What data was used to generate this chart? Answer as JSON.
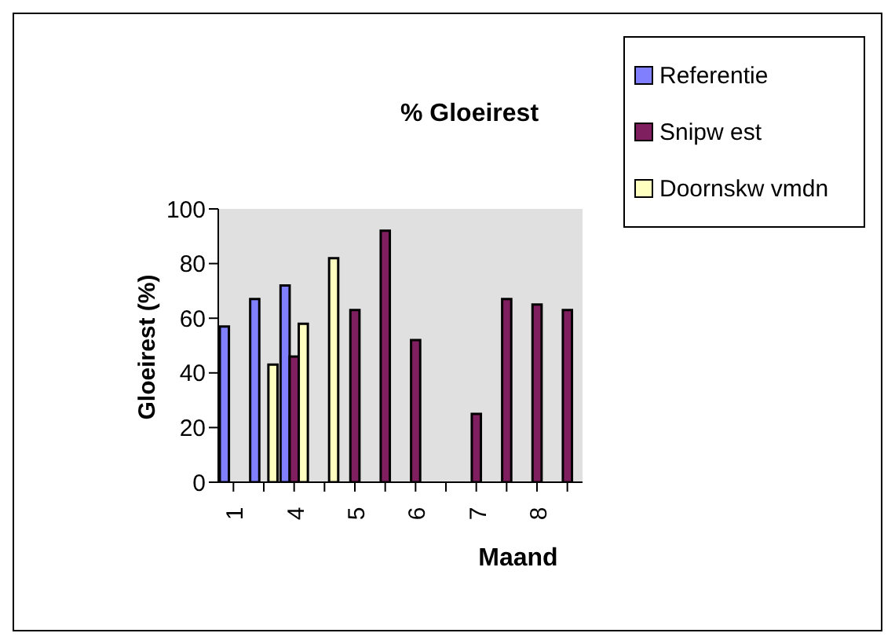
{
  "chart_data": {
    "type": "bar",
    "title": "% Gloeirest",
    "xlabel": "Maand",
    "ylabel": "Gloeirest (%)",
    "categories": [
      "1",
      null,
      "4",
      null,
      "5",
      null,
      "6",
      null,
      "7",
      null,
      "8",
      null
    ],
    "series": [
      {
        "name": "Referentie",
        "color": "#8080ff",
        "values": [
          57,
          67,
          72,
          null,
          null,
          null,
          null,
          null,
          null,
          null,
          null,
          null
        ]
      },
      {
        "name": "Snipw est",
        "color": "#801f60",
        "values": [
          null,
          null,
          46,
          null,
          63,
          92,
          52,
          null,
          25,
          67,
          65,
          63
        ]
      },
      {
        "name": "Doornskw vmdn",
        "color": "#ffffc0",
        "values": [
          null,
          43,
          58,
          82,
          null,
          null,
          null,
          null,
          null,
          null,
          null,
          null
        ]
      }
    ],
    "ylim": [
      0,
      100
    ],
    "yticks": [
      0,
      20,
      40,
      60,
      80,
      100
    ],
    "legend": "top right"
  }
}
